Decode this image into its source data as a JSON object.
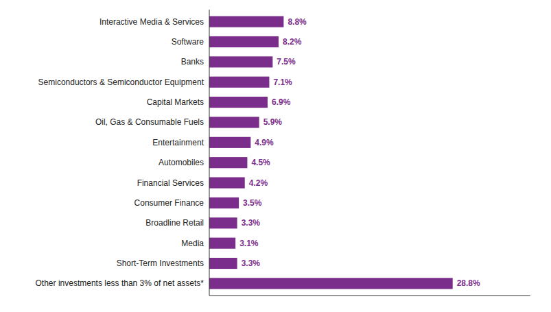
{
  "chart_data": {
    "type": "bar",
    "orientation": "horizontal",
    "categories": [
      "Other investments less than 3% of net assets*",
      "Short-Term Investments",
      "Media",
      "Broadline Retail",
      "Consumer Finance",
      "Financial Services",
      "Automobiles",
      "Entertainment",
      "Oil, Gas & Consumable Fuels",
      "Capital Markets",
      "Semiconductors & Semiconductor Equipment",
      "Banks",
      "Software",
      "Interactive Media & Services"
    ],
    "values": [
      28.8,
      3.3,
      3.1,
      3.3,
      3.5,
      4.2,
      4.5,
      4.9,
      5.9,
      6.9,
      7.1,
      7.5,
      8.2,
      8.8
    ],
    "value_labels": [
      "28.8%",
      "3.3%",
      "3.1%",
      "3.3%",
      "3.5%",
      "4.2%",
      "4.5%",
      "4.9%",
      "5.9%",
      "6.9%",
      "7.1%",
      "7.5%",
      "8.2%",
      "8.8%"
    ],
    "data_labels": true,
    "color": "#7B2D8B",
    "xlim": [
      0,
      38
    ],
    "tick_labels": "y",
    "grid": false
  }
}
